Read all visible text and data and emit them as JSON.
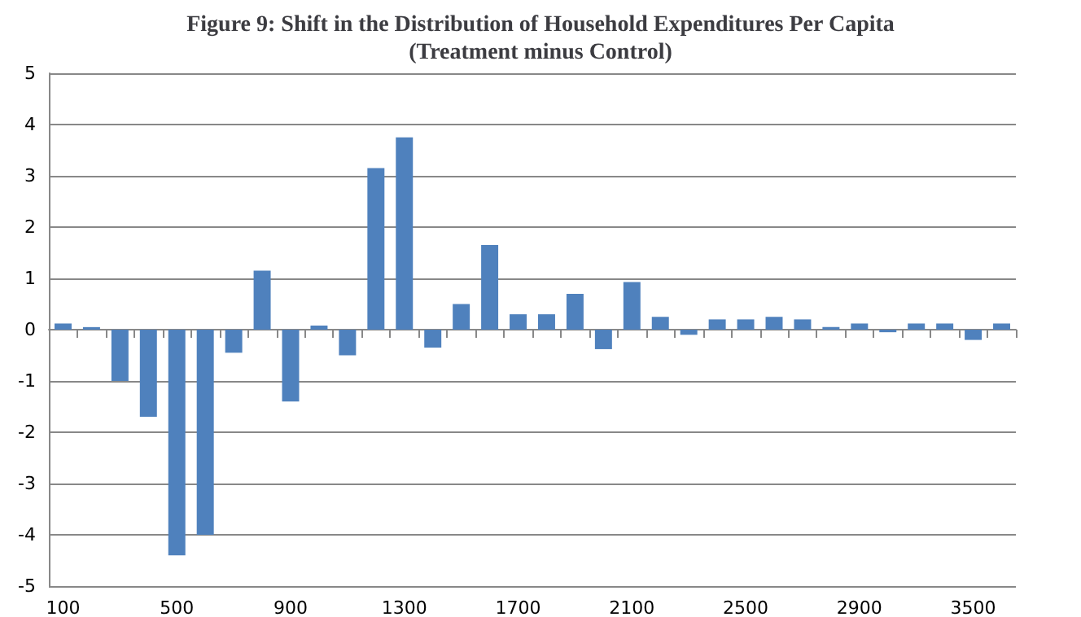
{
  "chart_data": {
    "type": "bar",
    "title": "Figure 9: Shift in the Distribution of Household Expenditures Per Capita\n(Treatment minus Control)",
    "categories": [
      "100",
      null,
      null,
      null,
      "500",
      null,
      null,
      null,
      "900",
      null,
      null,
      null,
      "1300",
      null,
      null,
      null,
      "1700",
      null,
      null,
      null,
      "2100",
      null,
      null,
      null,
      "2500",
      null,
      null,
      null,
      "2900",
      null,
      null,
      null,
      "3500",
      null
    ],
    "values": [
      0.12,
      0.05,
      -1.0,
      -1.7,
      -4.4,
      -4.0,
      -0.45,
      1.15,
      -1.4,
      0.08,
      -0.5,
      3.15,
      3.75,
      -0.35,
      0.5,
      1.65,
      0.3,
      0.3,
      0.7,
      -0.38,
      0.93,
      0.25,
      -0.1,
      0.2,
      0.2,
      0.25,
      0.2,
      0.05,
      0.12,
      -0.05,
      0.12,
      0.12,
      -0.2,
      0.12
    ],
    "color": "#4f81bd",
    "ylim": [
      -5,
      5
    ],
    "yticks": [
      -5,
      -4,
      -3,
      -2,
      -1,
      0,
      1,
      2,
      3,
      4,
      5
    ],
    "grid": "y"
  }
}
